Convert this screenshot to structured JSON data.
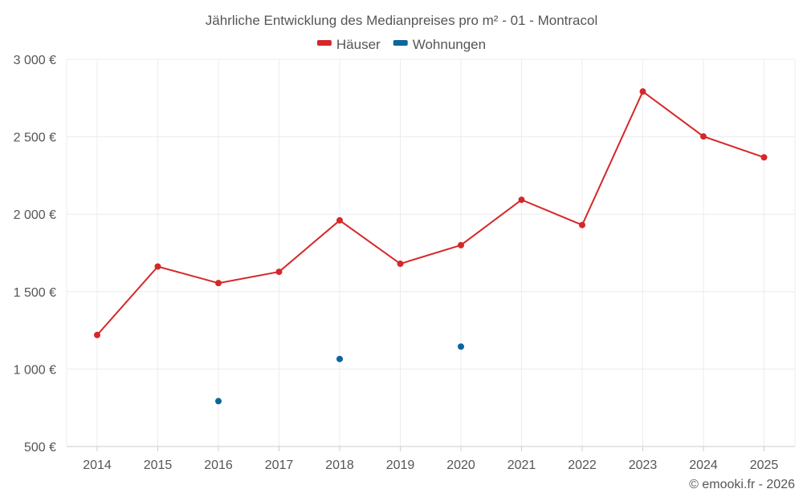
{
  "chart_data": {
    "type": "line",
    "title": "Jährliche Entwicklung des Medianpreises pro m² - 01 - Montracol",
    "categories": [
      "2014",
      "2015",
      "2016",
      "2017",
      "2018",
      "2019",
      "2020",
      "2021",
      "2022",
      "2023",
      "2024",
      "2025"
    ],
    "series": [
      {
        "name": "Häuser",
        "color": "#d62728",
        "style": "line",
        "values": [
          1220,
          1662,
          1555,
          1628,
          1960,
          1680,
          1800,
          2093,
          1930,
          2792,
          2502,
          2367
        ]
      },
      {
        "name": "Wohnungen",
        "color": "#0b66a0",
        "style": "points",
        "values": [
          null,
          null,
          793,
          null,
          1065,
          null,
          1145,
          null,
          null,
          null,
          null,
          null
        ]
      }
    ],
    "ylim": [
      500,
      3000
    ],
    "yticks": [
      500,
      1000,
      1500,
      2000,
      2500,
      3000
    ],
    "ytick_labels": [
      "500 €",
      "1 000 €",
      "1 500 €",
      "2 000 €",
      "2 500 €",
      "3 000 €"
    ],
    "grid": true,
    "legend_position": "top-center",
    "xlabel": "",
    "ylabel": ""
  },
  "credit": "© emooki.fr - 2026"
}
